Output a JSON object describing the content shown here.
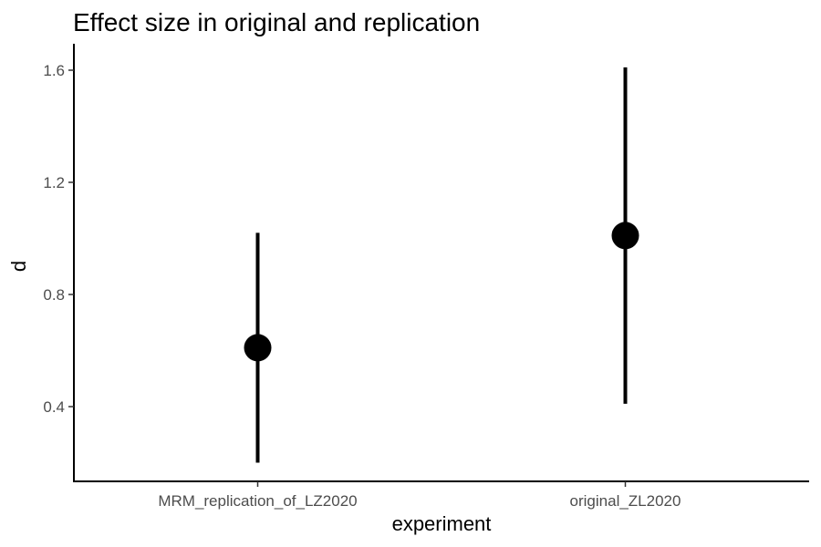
{
  "chart_data": {
    "type": "pointrange",
    "title": "Effect size in original and replication",
    "xlabel": "experiment",
    "ylabel": "d",
    "categories": [
      "MRM_replication_of_LZ2020",
      "original_ZL2020"
    ],
    "estimate": [
      0.61,
      1.01
    ],
    "ci_lower": [
      0.2,
      0.41
    ],
    "ci_upper": [
      1.02,
      1.61
    ],
    "ylim": [
      0.145,
      1.61
    ],
    "yticks": [
      0.4,
      0.8,
      1.2,
      1.6
    ],
    "ytick_labels": [
      "0.4",
      "0.8",
      "1.2",
      "1.6"
    ],
    "grid": false,
    "color": "#000000"
  }
}
